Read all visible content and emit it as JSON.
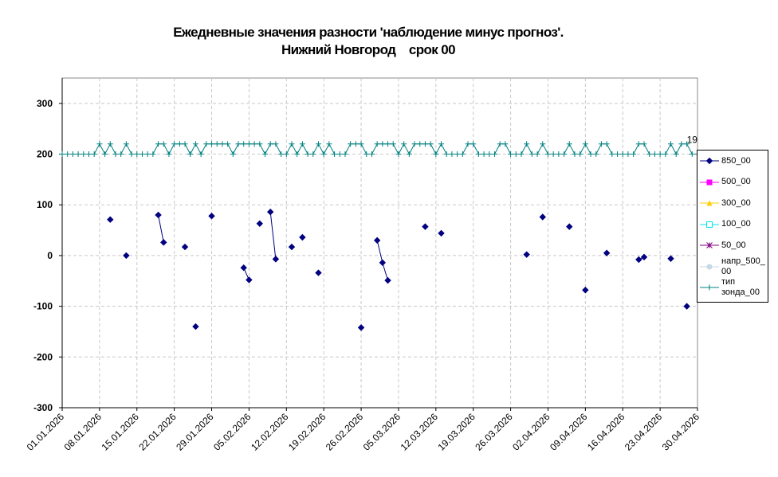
{
  "chart_data": {
    "type": "line",
    "title": "Ежедневные значения разности 'наблюдение минус прогноз'.",
    "subtitle": "Нижний Новгород    срок 00",
    "annotation": "19",
    "grid": true,
    "ylim": [
      -300,
      350
    ],
    "yticks": [
      -300,
      -200,
      -100,
      0,
      100,
      200,
      300
    ],
    "categories": [
      "01.01.2026",
      null,
      null,
      null,
      null,
      null,
      null,
      "08.01.2026",
      null,
      null,
      null,
      null,
      null,
      null,
      "15.01.2026",
      null,
      null,
      null,
      null,
      null,
      null,
      "22.01.2026",
      null,
      null,
      null,
      null,
      null,
      null,
      "29.01.2026",
      null,
      null,
      null,
      null,
      null,
      null,
      "05.02.2026",
      null,
      null,
      null,
      null,
      null,
      null,
      "12.02.2026",
      null,
      null,
      null,
      null,
      null,
      null,
      "19.02.2026",
      null,
      null,
      null,
      null,
      null,
      null,
      "26.02.2026",
      null,
      null,
      null,
      null,
      null,
      null,
      "05.03.2026",
      null,
      null,
      null,
      null,
      null,
      null,
      "12.03.2026",
      null,
      null,
      null,
      null,
      null,
      null,
      "19.03.2026",
      null,
      null,
      null,
      null,
      null,
      null,
      "26.03.2026",
      null,
      null,
      null,
      null,
      null,
      null,
      "02.04.2026",
      null,
      null,
      null,
      null,
      null,
      null,
      "09.04.2026",
      null,
      null,
      null,
      null,
      null,
      null,
      "16.04.2026",
      null,
      null,
      null,
      null,
      null,
      null,
      "23.04.2026",
      null,
      null,
      null,
      null,
      null,
      null,
      "30.04.2026"
    ],
    "series": [
      {
        "name": "850_00",
        "color": "#000080",
        "marker": "diamond",
        "values": [
          null,
          null,
          null,
          null,
          null,
          null,
          null,
          null,
          null,
          71,
          null,
          null,
          0,
          null,
          null,
          null,
          null,
          null,
          80,
          26,
          null,
          null,
          null,
          17,
          null,
          -140,
          null,
          null,
          78,
          null,
          null,
          null,
          null,
          null,
          -24,
          -48,
          null,
          63,
          null,
          86,
          -7,
          null,
          null,
          17,
          null,
          36,
          null,
          null,
          -34,
          null,
          null,
          null,
          null,
          null,
          null,
          null,
          -142,
          null,
          null,
          30,
          -14,
          -49,
          null,
          null,
          null,
          null,
          null,
          null,
          57,
          null,
          null,
          44,
          null,
          null,
          null,
          null,
          null,
          null,
          null,
          null,
          null,
          null,
          null,
          null,
          null,
          null,
          null,
          2,
          null,
          null,
          76,
          null,
          null,
          null,
          null,
          57,
          null,
          null,
          -68,
          null,
          null,
          null,
          5,
          null,
          null,
          null,
          null,
          null,
          -8,
          -3,
          null,
          null,
          null,
          null,
          -6,
          null,
          null,
          -100,
          null,
          null
        ]
      },
      {
        "name": "500_00",
        "color": "#ff00ff",
        "marker": "square",
        "values": [
          null,
          null,
          null,
          null,
          null,
          null,
          null,
          null,
          null,
          null,
          null,
          null,
          null,
          null,
          null,
          null,
          null,
          null,
          null,
          null,
          null,
          null,
          null,
          null,
          null,
          null,
          null,
          null,
          null,
          null,
          null,
          null,
          null,
          null,
          null,
          null,
          null,
          null,
          null,
          null,
          null,
          null,
          null,
          null,
          null,
          null,
          null,
          null,
          null,
          null,
          null,
          null,
          null,
          null,
          null,
          null,
          null,
          null,
          null,
          null,
          null,
          null,
          null,
          null,
          null,
          null,
          null,
          null,
          null,
          null,
          null,
          null,
          null,
          null,
          null,
          null,
          null,
          null,
          null,
          null,
          null,
          null,
          null,
          null,
          null,
          null,
          null,
          null,
          null,
          null,
          null,
          null,
          null,
          null,
          null,
          null,
          null,
          null,
          null,
          null,
          null,
          null,
          null,
          null,
          null,
          null,
          null,
          null,
          null,
          null,
          null,
          null,
          null,
          null,
          null,
          null,
          null,
          null,
          null,
          null
        ]
      },
      {
        "name": "300_00",
        "color": "#ffcc00",
        "marker": "triangle",
        "values": [
          null,
          null,
          null,
          null,
          null,
          null,
          null,
          null,
          null,
          null,
          null,
          null,
          null,
          null,
          null,
          null,
          null,
          null,
          null,
          null,
          null,
          null,
          null,
          null,
          null,
          null,
          null,
          null,
          null,
          null,
          null,
          null,
          null,
          null,
          null,
          null,
          null,
          null,
          null,
          null,
          null,
          null,
          null,
          null,
          null,
          null,
          null,
          null,
          null,
          null,
          null,
          null,
          null,
          null,
          null,
          null,
          null,
          null,
          null,
          null,
          null,
          null,
          null,
          null,
          null,
          null,
          null,
          null,
          null,
          null,
          null,
          null,
          null,
          null,
          null,
          null,
          null,
          null,
          null,
          null,
          null,
          null,
          null,
          null,
          null,
          null,
          null,
          null,
          null,
          null,
          null,
          null,
          null,
          null,
          null,
          null,
          null,
          null,
          null,
          null,
          null,
          null,
          null,
          null,
          null,
          null,
          null,
          null,
          null,
          null,
          null,
          null,
          null,
          null,
          null,
          null,
          null,
          null,
          null,
          null
        ]
      },
      {
        "name": "100_00",
        "color": "#00e5ee",
        "marker": "hollow-square",
        "values": [
          null,
          null,
          null,
          null,
          null,
          null,
          null,
          null,
          null,
          null,
          null,
          null,
          null,
          null,
          null,
          null,
          null,
          null,
          null,
          null,
          null,
          null,
          null,
          null,
          null,
          null,
          null,
          null,
          null,
          null,
          null,
          null,
          null,
          null,
          null,
          null,
          null,
          null,
          null,
          null,
          null,
          null,
          null,
          null,
          null,
          null,
          null,
          null,
          null,
          null,
          null,
          null,
          null,
          null,
          null,
          null,
          null,
          null,
          null,
          null,
          null,
          null,
          null,
          null,
          null,
          null,
          null,
          null,
          null,
          null,
          null,
          null,
          null,
          null,
          null,
          null,
          null,
          null,
          null,
          null,
          null,
          null,
          null,
          null,
          null,
          null,
          null,
          null,
          null,
          null,
          null,
          null,
          null,
          null,
          null,
          null,
          null,
          null,
          null,
          null,
          null,
          null,
          null,
          null,
          null,
          null,
          null,
          null,
          null,
          null,
          null,
          null,
          null,
          null,
          null,
          null,
          null,
          null,
          null,
          null
        ]
      },
      {
        "name": "50_00",
        "color": "#800080",
        "marker": "star",
        "values": [
          null,
          null,
          null,
          null,
          null,
          null,
          null,
          null,
          null,
          null,
          null,
          null,
          null,
          null,
          null,
          null,
          null,
          null,
          null,
          null,
          null,
          null,
          null,
          null,
          null,
          null,
          null,
          null,
          null,
          null,
          null,
          null,
          null,
          null,
          null,
          null,
          null,
          null,
          null,
          null,
          null,
          null,
          null,
          null,
          null,
          null,
          null,
          null,
          null,
          null,
          null,
          null,
          null,
          null,
          null,
          null,
          null,
          null,
          null,
          null,
          null,
          null,
          null,
          null,
          null,
          null,
          null,
          null,
          null,
          null,
          null,
          null,
          null,
          null,
          null,
          null,
          null,
          null,
          null,
          null,
          null,
          null,
          null,
          null,
          null,
          null,
          null,
          null,
          null,
          null,
          null,
          null,
          null,
          null,
          null,
          null,
          null,
          null,
          null,
          null,
          null,
          null,
          null,
          null,
          null,
          null,
          null,
          null,
          null,
          null,
          null,
          null,
          null,
          null,
          null,
          null,
          null,
          null,
          null,
          null
        ]
      },
      {
        "name": "напр_500_00",
        "color": "#c6d9e6",
        "marker": "circle",
        "values": [
          null,
          null,
          null,
          null,
          null,
          null,
          null,
          null,
          null,
          null,
          null,
          null,
          null,
          null,
          null,
          null,
          null,
          null,
          null,
          null,
          null,
          null,
          null,
          null,
          null,
          null,
          null,
          null,
          null,
          null,
          null,
          null,
          null,
          null,
          null,
          null,
          null,
          null,
          null,
          null,
          null,
          null,
          null,
          null,
          null,
          null,
          null,
          null,
          null,
          null,
          null,
          null,
          null,
          null,
          null,
          null,
          null,
          null,
          null,
          null,
          null,
          null,
          null,
          null,
          null,
          null,
          null,
          null,
          null,
          null,
          null,
          null,
          null,
          null,
          null,
          null,
          null,
          null,
          null,
          null,
          null,
          null,
          null,
          null,
          null,
          null,
          null,
          null,
          null,
          null,
          null,
          null,
          null,
          null,
          null,
          null,
          null,
          null,
          null,
          null,
          null,
          null,
          null,
          null,
          null,
          null,
          null,
          null,
          null,
          null,
          null,
          null,
          null,
          null,
          null,
          null,
          null,
          null,
          null,
          null
        ]
      },
      {
        "name": "тип зонда_00",
        "color": "#008080",
        "marker": "plus",
        "values": [
          200,
          200,
          200,
          200,
          200,
          200,
          200,
          220,
          200,
          220,
          200,
          200,
          220,
          200,
          200,
          200,
          200,
          200,
          220,
          220,
          200,
          220,
          220,
          220,
          200,
          220,
          200,
          220,
          220,
          220,
          220,
          220,
          200,
          220,
          220,
          220,
          220,
          220,
          200,
          220,
          220,
          200,
          200,
          220,
          200,
          220,
          200,
          200,
          220,
          200,
          220,
          200,
          200,
          200,
          220,
          220,
          220,
          200,
          200,
          220,
          220,
          220,
          220,
          200,
          220,
          200,
          220,
          220,
          220,
          220,
          200,
          220,
          200,
          200,
          200,
          200,
          220,
          220,
          200,
          200,
          200,
          200,
          220,
          220,
          200,
          200,
          200,
          220,
          200,
          200,
          220,
          200,
          200,
          200,
          200,
          220,
          200,
          200,
          220,
          200,
          200,
          220,
          220,
          200,
          200,
          200,
          200,
          200,
          220,
          220,
          200,
          200,
          200,
          200,
          220,
          200,
          220,
          220,
          200,
          200
        ]
      }
    ]
  }
}
